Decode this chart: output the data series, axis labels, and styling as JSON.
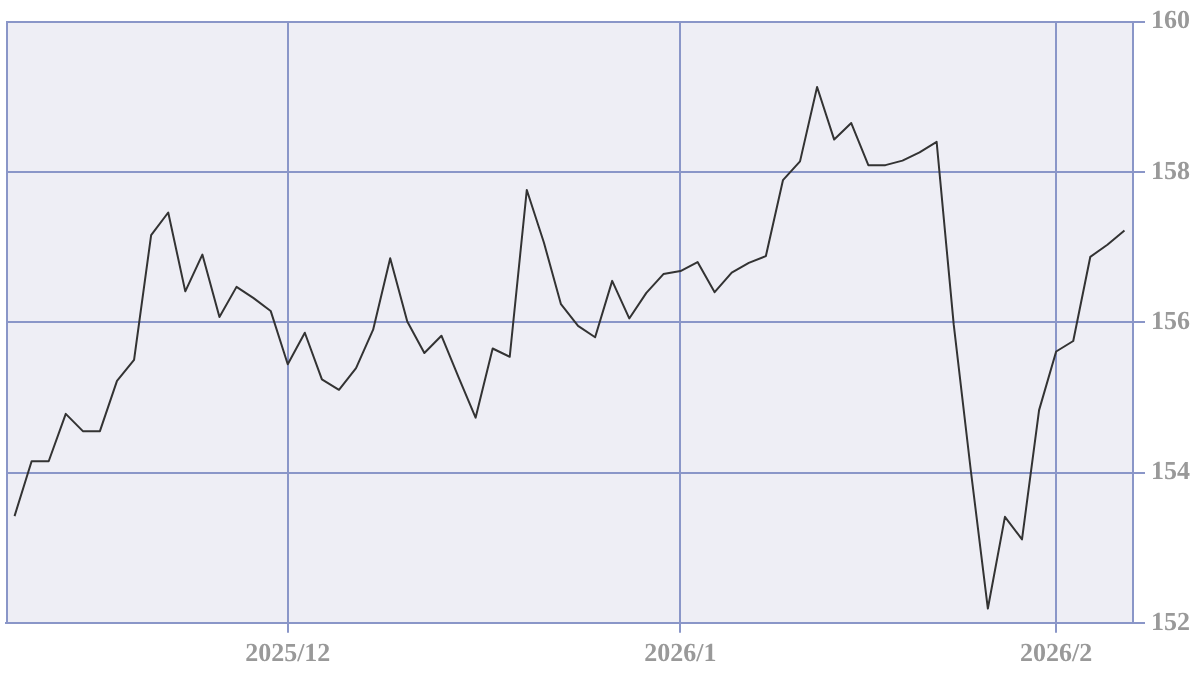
{
  "chart_data": {
    "type": "line",
    "categories": [
      null,
      null,
      null,
      null,
      null,
      null,
      null,
      null,
      null,
      null,
      null,
      null,
      null,
      null,
      null,
      null,
      "2025/12",
      null,
      null,
      null,
      null,
      null,
      null,
      null,
      null,
      null,
      null,
      null,
      null,
      null,
      null,
      null,
      null,
      null,
      null,
      null,
      null,
      null,
      null,
      "2026/1",
      null,
      null,
      null,
      null,
      null,
      null,
      null,
      null,
      null,
      null,
      null,
      null,
      null,
      null,
      null,
      null,
      null,
      null,
      null,
      null,
      null,
      "2026/2",
      null,
      null,
      null,
      null
    ],
    "series": [
      {
        "color": "#333333",
        "values": [
          153.42,
          154.15,
          154.15,
          154.78,
          154.55,
          154.55,
          155.22,
          155.5,
          157.16,
          157.46,
          156.41,
          156.9,
          156.07,
          156.47,
          156.32,
          156.15,
          155.44,
          155.86,
          155.24,
          155.1,
          155.39,
          155.9,
          156.85,
          156.01,
          155.59,
          155.82,
          155.27,
          154.73,
          155.65,
          155.54,
          157.76,
          157.06,
          156.24,
          155.95,
          155.8,
          156.55,
          156.05,
          156.39,
          156.64,
          156.68,
          156.8,
          156.4,
          156.66,
          156.79,
          156.88,
          157.89,
          158.14,
          159.13,
          158.43,
          158.65,
          158.09,
          158.09,
          158.15,
          158.26,
          158.4,
          155.97,
          154.03,
          152.19,
          153.41,
          153.11,
          154.83,
          155.61,
          155.75,
          156.87,
          157.03,
          157.22
        ]
      }
    ],
    "ylim": [
      152,
      160
    ],
    "yticks": [
      152,
      154,
      156,
      158,
      160
    ],
    "grid": true,
    "marker": "none",
    "line_style": "solid"
  }
}
